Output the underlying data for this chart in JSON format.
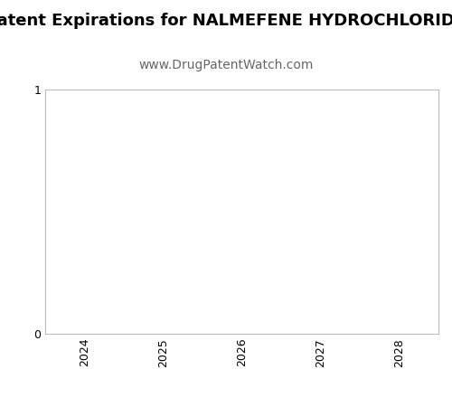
{
  "title": "Patent Expirations for NALMEFENE HYDROCHLORIDE",
  "subtitle": "www.DrugPatentWatch.com",
  "title_fontsize": 13,
  "subtitle_fontsize": 10,
  "title_fontweight": "bold",
  "xlim": [
    2023.5,
    2028.5
  ],
  "ylim": [
    0,
    1
  ],
  "xticks": [
    2024,
    2025,
    2026,
    2027,
    2028
  ],
  "yticks": [
    0,
    1
  ],
  "xlabel": "",
  "ylabel": "",
  "background_color": "#ffffff",
  "plot_bg_color": "#ffffff",
  "spine_color": "#bbbbbb",
  "tick_label_color": "#000000",
  "title_color": "#000000",
  "subtitle_color": "#666666",
  "tick_fontsize": 9
}
